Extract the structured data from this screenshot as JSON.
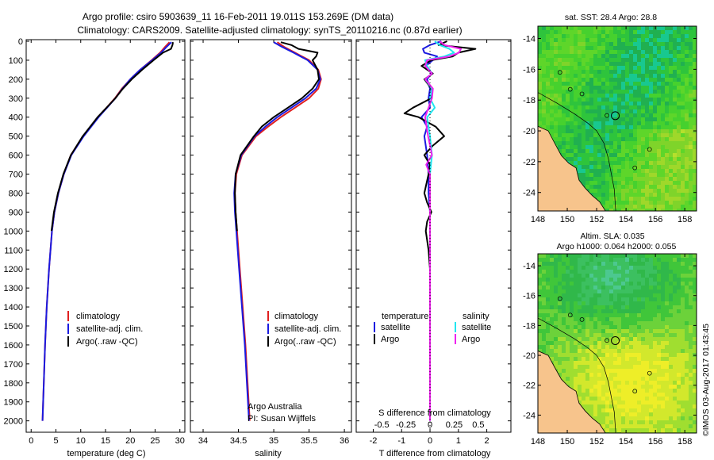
{
  "header": {
    "title_line1": "Argo profile: csiro 5903639_11 16-Feb-2011 19.011S 153.269E (DM data)",
    "title_line2": "Climatology: CARS2009. Satellite-adjusted climatology: synTS_20110216.nc (0.87d earlier)"
  },
  "colors": {
    "climatology": "#e02020",
    "satellite": "#1a1ae0",
    "argo": "#000000",
    "sal_satellite": "#22e6f0",
    "sal_argo": "#ee22ee",
    "land": "#f7c48c"
  },
  "depth_axis": {
    "ticks": [
      "0",
      "100",
      "200",
      "300",
      "400",
      "500",
      "600",
      "700",
      "800",
      "900",
      "1000",
      "1100",
      "1200",
      "1300",
      "1400",
      "1500",
      "1600",
      "1700",
      "1800",
      "1900",
      "2000"
    ]
  },
  "chart_data": [
    {
      "type": "line",
      "name": "temperature",
      "xlabel": "temperature (deg C)",
      "xlim": [
        -1,
        31
      ],
      "ylim": [
        0,
        2060
      ],
      "xticks": [
        "0",
        "5",
        "10",
        "15",
        "20",
        "25",
        "30"
      ],
      "xtick_values": [
        0,
        5,
        10,
        15,
        20,
        25,
        30
      ],
      "legend": [
        "climatology",
        "satellite-adj. clim.",
        "Argo(..raw -QC)"
      ],
      "series": [
        {
          "name": "climatology",
          "color_key": "climatology",
          "depth": [
            5,
            30,
            60,
            100,
            150,
            200,
            250,
            300,
            350,
            400,
            500,
            600,
            700,
            800,
            900,
            1000,
            1200,
            1400,
            1600,
            1800,
            2000
          ],
          "values": [
            27.9,
            27.0,
            26.0,
            24.3,
            22.0,
            20.0,
            18.3,
            16.9,
            15.2,
            13.5,
            10.5,
            8.0,
            6.6,
            5.5,
            4.7,
            4.2,
            3.6,
            3.15,
            2.8,
            2.55,
            2.3
          ]
        },
        {
          "name": "satellite-adj. clim.",
          "color_key": "satellite",
          "depth": [
            5,
            30,
            60,
            100,
            150,
            200,
            250,
            300,
            350,
            400,
            500,
            600,
            700,
            800,
            900,
            1000,
            1200,
            1400,
            1600,
            1800,
            2000
          ],
          "values": [
            28.3,
            27.3,
            26.2,
            24.4,
            22.0,
            20.0,
            18.4,
            17.0,
            15.3,
            13.6,
            10.6,
            8.1,
            6.6,
            5.5,
            4.7,
            4.2,
            3.6,
            3.15,
            2.8,
            2.55,
            2.3
          ]
        },
        {
          "name": "Argo(..raw -QC)",
          "color_key": "argo",
          "depth": [
            5,
            20,
            40,
            60,
            100,
            150,
            200,
            250,
            300,
            350,
            400,
            500,
            600,
            700,
            800,
            900,
            1000
          ],
          "values": [
            28.6,
            28.5,
            28.2,
            26.6,
            24.7,
            22.4,
            20.3,
            18.5,
            17.0,
            15.2,
            13.4,
            10.4,
            8.0,
            6.5,
            5.4,
            4.6,
            4.1
          ]
        }
      ]
    },
    {
      "type": "line",
      "name": "salinity",
      "xlabel": "salinity",
      "xlim": [
        33.82,
        36.1
      ],
      "ylim": [
        0,
        2060
      ],
      "xticks": [
        "34",
        "34.5",
        "35",
        "35.5",
        "36"
      ],
      "xtick_values": [
        34,
        34.5,
        35,
        35.5,
        36
      ],
      "legend": [
        "climatology",
        "satellite-adj. clim.",
        "Argo(..raw -QC)"
      ],
      "annotation": [
        "Argo Australia",
        "PI: Susan Wijffels"
      ],
      "series": [
        {
          "name": "climatology",
          "color_key": "climatology",
          "depth": [
            5,
            30,
            60,
            100,
            150,
            200,
            250,
            300,
            350,
            400,
            450,
            500,
            600,
            700,
            800,
            900,
            1000,
            1200,
            1400,
            1600,
            1800,
            2000
          ],
          "values": [
            35.05,
            35.15,
            35.3,
            35.5,
            35.63,
            35.67,
            35.63,
            35.5,
            35.3,
            35.1,
            34.92,
            34.75,
            34.55,
            34.47,
            34.45,
            34.46,
            34.48,
            34.52,
            34.56,
            34.6,
            34.63,
            34.66
          ]
        },
        {
          "name": "satellite-adj. clim.",
          "color_key": "satellite",
          "depth": [
            5,
            30,
            60,
            100,
            150,
            200,
            250,
            300,
            350,
            400,
            450,
            500,
            600,
            700,
            800,
            900,
            1000,
            1200,
            1400,
            1600,
            1800,
            2000
          ],
          "values": [
            35.0,
            35.12,
            35.28,
            35.48,
            35.62,
            35.66,
            35.6,
            35.45,
            35.25,
            35.05,
            34.88,
            34.73,
            34.54,
            34.46,
            34.44,
            34.45,
            34.47,
            34.51,
            34.55,
            34.59,
            34.62,
            34.65
          ]
        },
        {
          "name": "Argo(..raw -QC)",
          "color_key": "argo",
          "depth": [
            5,
            20,
            40,
            60,
            80,
            100,
            150,
            200,
            250,
            300,
            350,
            400,
            450,
            500,
            600,
            700,
            800,
            900,
            1000
          ],
          "values": [
            35.1,
            35.25,
            35.35,
            35.62,
            35.6,
            35.55,
            35.62,
            35.64,
            35.55,
            35.4,
            35.2,
            35.0,
            34.83,
            34.72,
            34.53,
            34.46,
            34.45,
            34.46,
            34.48
          ]
        }
      ]
    },
    {
      "type": "line",
      "name": "difference",
      "xlabel": "T difference from climatology",
      "xlabel_top": "S difference from climatology",
      "xlim_T": [
        -2.6,
        2.85
      ],
      "ylim": [
        0,
        2060
      ],
      "xticks_T": [
        "-2",
        "-1",
        "0",
        "1",
        "2"
      ],
      "xtick_values_T": [
        -2,
        -1,
        0,
        1,
        2
      ],
      "xticks_S": [
        "-0.5",
        "-0.25",
        "0",
        "0.25",
        "0.5"
      ],
      "xtick_values_S": [
        -0.5,
        -0.25,
        0,
        0.25,
        0.5
      ],
      "legend_temperature": [
        "temperature",
        "satellite",
        "Argo"
      ],
      "legend_salinity": [
        "salinity",
        "satellite",
        "Argo"
      ],
      "series": [
        {
          "name": "T satellite",
          "color_key": "satellite",
          "axis": "T",
          "depth": [
            0,
            20,
            40,
            60,
            80,
            100,
            130,
            170,
            200,
            250,
            300,
            350,
            400,
            450,
            500,
            600,
            700,
            800,
            900,
            1000,
            1400,
            2000
          ],
          "values": [
            0.4,
            0.0,
            -0.25,
            -0.2,
            0.25,
            0.1,
            -0.15,
            0.05,
            -0.1,
            0.0,
            -0.05,
            0.0,
            -0.3,
            -0.1,
            -0.2,
            -0.1,
            -0.05,
            -0.05,
            0.0,
            0.0,
            0.0,
            0.0
          ]
        },
        {
          "name": "T Argo",
          "color_key": "argo",
          "axis": "T",
          "depth": [
            0,
            20,
            40,
            60,
            80,
            100,
            130,
            170,
            200,
            250,
            300,
            350,
            380,
            400,
            450,
            500,
            550,
            600,
            650,
            700,
            800,
            850,
            900,
            950,
            1000,
            1100,
            1200,
            1300,
            1400,
            1500,
            1600,
            1700,
            1800,
            1900
          ],
          "values": [
            0.6,
            0.3,
            1.6,
            1.0,
            0.8,
            0.05,
            -0.3,
            0.1,
            -0.2,
            0.05,
            0.05,
            -0.6,
            -0.9,
            -0.4,
            0.2,
            0.5,
            0.1,
            -0.2,
            0.0,
            -0.05,
            -0.2,
            -0.1,
            0.05,
            -0.1,
            -0.15,
            -0.05,
            0.0,
            0.0,
            0.0,
            0.0,
            0.0,
            0.0,
            0.0,
            0.0
          ]
        },
        {
          "name": "S satellite",
          "color_key": "sal_satellite",
          "axis": "S",
          "depth": [
            0,
            20,
            40,
            60,
            80,
            100,
            130,
            170,
            200,
            250,
            300,
            350,
            400,
            500,
            600,
            700,
            800,
            1000,
            1400,
            2000
          ],
          "values": [
            0.05,
            0.1,
            0.2,
            0.25,
            0.15,
            -0.05,
            -0.03,
            0.02,
            -0.05,
            0.02,
            0.0,
            0.05,
            -0.03,
            0.0,
            0.02,
            0.0,
            0.0,
            0.0,
            0.0,
            0.0
          ]
        },
        {
          "name": "S Argo",
          "color_key": "sal_argo",
          "axis": "S",
          "depth": [
            0,
            20,
            40,
            60,
            80,
            100,
            130,
            170,
            200,
            250,
            300,
            400,
            500,
            600,
            650,
            700,
            800,
            1000,
            1400,
            2000
          ],
          "values": [
            0.1,
            0.15,
            0.32,
            0.3,
            0.2,
            -0.03,
            -0.05,
            0.02,
            -0.05,
            0.03,
            0.02,
            -0.05,
            -0.02,
            0.02,
            -0.04,
            0.0,
            0.0,
            0.0,
            0.0,
            0.0
          ]
        }
      ]
    },
    {
      "type": "heatmap",
      "name": "sst_map",
      "title": "sat. SST: 28.4 Argo: 28.8",
      "xticks": [
        "148",
        "150",
        "152",
        "154",
        "156",
        "158"
      ],
      "yticks": [
        "-14",
        "-16",
        "-18",
        "-20",
        "-22",
        "-24"
      ],
      "lon_range": [
        148,
        158.8
      ],
      "lat_range": [
        -25.2,
        -13.2
      ],
      "argo_position": {
        "lon": 153.269,
        "lat": -19.011
      }
    },
    {
      "type": "heatmap",
      "name": "sla_map",
      "title_line1": "Altim. SLA: 0.035",
      "title_line2": "Argo h1000: 0.064 h2000: 0.055",
      "xticks": [
        "148",
        "150",
        "152",
        "154",
        "156",
        "158"
      ],
      "yticks": [
        "-14",
        "-16",
        "-18",
        "-20",
        "-22",
        "-24"
      ],
      "lon_range": [
        148,
        158.8
      ],
      "lat_range": [
        -25.2,
        -13.2
      ],
      "argo_position": {
        "lon": 153.269,
        "lat": -19.011
      }
    }
  ],
  "footer": {
    "imos_stamp": "©IMOS 03-Aug-2017 01:43:45"
  }
}
